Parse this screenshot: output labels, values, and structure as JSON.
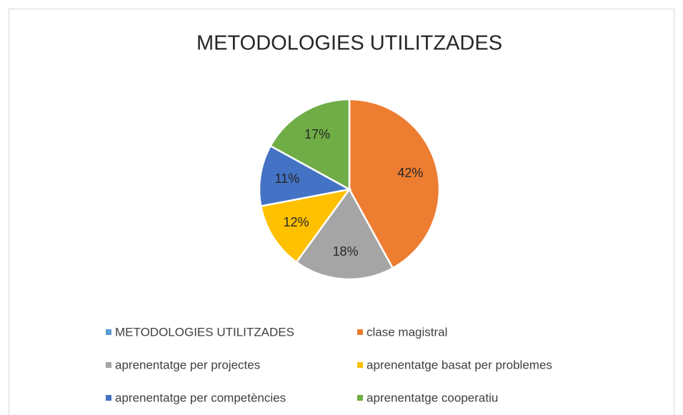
{
  "chart_data": {
    "type": "pie",
    "title": "METODOLOGIES UTILITZADES",
    "categories": [
      "METODOLOGIES UTILITZADES",
      "clase magistral",
      "aprenentatge per projectes",
      "aprenentatge basat per problemes",
      "aprenentatge per competències",
      "aprenentatge cooperatiu"
    ],
    "values": [
      0,
      42,
      18,
      12,
      11,
      17
    ],
    "value_labels": [
      null,
      "42%",
      "18%",
      "12%",
      "11%",
      "17%"
    ],
    "colors": [
      "#5b9bd5",
      "#ed7d31",
      "#a5a5a5",
      "#ffc000",
      "#4472c4",
      "#70ad47"
    ],
    "legend": "bottom"
  }
}
